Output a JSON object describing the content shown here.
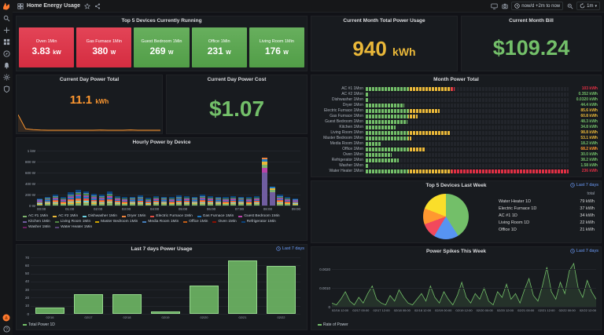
{
  "header": {
    "title": "Home Energy Usage",
    "time_range": "now/d +2m to now",
    "refresh_interval": "1m",
    "icons": [
      "dashboard-icon",
      "star-icon",
      "share-icon",
      "tv-icon",
      "clock-icon",
      "zoom-out-icon",
      "refresh-icon",
      "caret-down-icon"
    ]
  },
  "sidebar": {
    "icons": [
      "grafana-logo",
      "search-icon",
      "plus-icon",
      "dashboards-icon",
      "explore-icon",
      "alerting-icon",
      "settings-icon",
      "shield-icon",
      "avatar",
      "help-icon"
    ]
  },
  "panels": {
    "top5_running": {
      "title": "Top 5 Devices Currently Running",
      "tiles": [
        {
          "label": "Oven 1Min",
          "value": "3.83",
          "unit": "kW",
          "color": "#e02f44"
        },
        {
          "label": "Gas Furnace 1Min",
          "value": "380",
          "unit": "W",
          "color": "#e02f44"
        },
        {
          "label": "Guest Bedroom 1Min",
          "value": "269",
          "unit": "W",
          "color": "#56a64b"
        },
        {
          "label": "Office 1Min",
          "value": "231",
          "unit": "W",
          "color": "#56a64b"
        },
        {
          "label": "Living Room 1Min",
          "value": "176",
          "unit": "W",
          "color": "#56a64b"
        }
      ]
    },
    "month_total": {
      "title": "Current Month Total Power Usage",
      "value": "940",
      "unit": "kWh",
      "color": "#eab839"
    },
    "month_bill": {
      "title": "Current Month Bill",
      "value": "$109.24",
      "color": "#73bf69"
    },
    "day_total": {
      "title": "Current Day Power Total",
      "value": "11.1",
      "unit": "kWh",
      "color": "#ff9830",
      "sparkline": [
        20,
        3.5,
        2.5,
        2,
        1.8,
        1.8,
        1.8,
        1.8,
        1.8,
        1.8,
        1.8,
        2,
        1.8,
        1.8,
        1.8,
        2.2,
        1.8,
        1.8,
        1.8,
        1.8
      ]
    },
    "day_cost": {
      "title": "Current Day Power Cost",
      "value": "$1.07",
      "color": "#73bf69"
    },
    "month_power_total": {
      "title": "Month Power Total",
      "max": 236,
      "rows": [
        {
          "label": "AC #1 1Mon",
          "value": 103,
          "display": "103 kWh",
          "color": "#e02f44"
        },
        {
          "label": "AC #2 1Mon",
          "value": 0.352,
          "display": "0.352 kWh",
          "color": "#73bf69"
        },
        {
          "label": "Dishwasher 1Mon",
          "value": 0.032,
          "display": "0.0320 kWh",
          "color": "#73bf69"
        },
        {
          "label": "Dryer 1Mon",
          "value": 44.4,
          "display": "44.4 kWh",
          "color": "#73bf69"
        },
        {
          "label": "Electric Furnace 1Mon",
          "value": 85.6,
          "display": "85.6 kWh",
          "color": "#eab839"
        },
        {
          "label": "Gas Furnace 1Mon",
          "value": 60.8,
          "display": "60.8 kWh",
          "color": "#eab839"
        },
        {
          "label": "Guest Bedroom 1Mon",
          "value": 48.3,
          "display": "48.3 kWh",
          "color": "#73bf69"
        },
        {
          "label": "Kitchen 1Mon",
          "value": 34.8,
          "display": "34.8 kWh",
          "color": "#73bf69"
        },
        {
          "label": "Living Room 1Mon",
          "value": 98.8,
          "display": "98.8 kWh",
          "color": "#eab839"
        },
        {
          "label": "Master Bedroom 1Mon",
          "value": 53.1,
          "display": "53.1 kWh",
          "color": "#eab839"
        },
        {
          "label": "Media Room 1Mon",
          "value": 18.2,
          "display": "18.2 kWh",
          "color": "#73bf69"
        },
        {
          "label": "Office 1Mon",
          "value": 68.2,
          "display": "68.2 kWh",
          "color": "#ff9830"
        },
        {
          "label": "Oven 1Mon",
          "value": 30.0,
          "display": "30.0 kWh",
          "color": "#73bf69"
        },
        {
          "label": "Refrigerator 1Mon",
          "value": 38.2,
          "display": "38.2 kWh",
          "color": "#73bf69"
        },
        {
          "label": "Washer 1Mon",
          "value": 1.58,
          "display": "1.58 kWh",
          "color": "#73bf69"
        },
        {
          "label": "Water Heater 1Mon",
          "value": 236,
          "display": "236 kWh",
          "color": "#e02f44"
        }
      ]
    },
    "hourly": {
      "title": "Hourly Power by Device",
      "chart_data": {
        "type": "bar",
        "stacked": true,
        "ylim": [
          0,
          1000
        ],
        "ylabels": [
          "1 kW",
          "800 W",
          "600 W",
          "400 W",
          "200 W",
          "0 W"
        ],
        "xlabels": [
          "00:00",
          "01:00",
          "02:00",
          "03:00",
          "04:00",
          "05:00",
          "06:00",
          "07:00",
          "08:00",
          "09:00"
        ],
        "palette": [
          "#7EB26D",
          "#EAB839",
          "#6ED0E0",
          "#EF843C",
          "#E24D42",
          "#1F78C1",
          "#BA43A9",
          "#705DA0",
          "#508642",
          "#CCA300",
          "#447EBC",
          "#C15C17",
          "#890F02",
          "#0A437C",
          "#6D1F62",
          "#584477"
        ],
        "series_names": [
          "AC #1 1Min",
          "AC #2 1Min",
          "Dishwasher 1Min",
          "Dryer 1Min",
          "Electric Furnace 1Min",
          "Gas Furnace 1Min",
          "Guest Bedroom 1Min",
          "Kitchen 1Min",
          "Living Room 1Min",
          "Master Bedroom 1Min",
          "Media Room 1Min",
          "Office 1Min",
          "Oven 1Min",
          "Refrigerator 1Min",
          "Washer 1Min",
          "Water Heater 1Min"
        ],
        "default_mix": [
          [
            0,
            0.16
          ],
          [
            1,
            0.1
          ],
          [
            2,
            0.08
          ],
          [
            3,
            0.1
          ],
          [
            4,
            0.08
          ],
          [
            5,
            0.12
          ],
          [
            6,
            0.08
          ],
          [
            7,
            0.06
          ],
          [
            8,
            0.1
          ],
          [
            10,
            0.06
          ],
          [
            13,
            0.16
          ]
        ],
        "bars": [
          {
            "total": 120
          },
          {
            "total": 150
          },
          {
            "total": 180
          },
          {
            "total": 140
          },
          {
            "total": 220
          },
          {
            "total": 260
          },
          {
            "total": 240
          },
          {
            "total": 200
          },
          {
            "total": 180
          },
          {
            "total": 230
          },
          {
            "total": 160
          },
          {
            "total": 140
          },
          {
            "total": 150
          },
          {
            "total": 170
          },
          {
            "total": 130
          },
          {
            "total": 160
          },
          {
            "total": 150
          },
          {
            "total": 140
          },
          {
            "total": 170
          },
          {
            "total": 160
          },
          {
            "total": 150
          },
          {
            "total": 180
          },
          {
            "total": 160
          },
          {
            "total": 150
          },
          {
            "total": 140
          },
          {
            "total": 160
          },
          {
            "total": 150
          },
          {
            "total": 140
          },
          {
            "total": 160
          },
          {
            "total": 870,
            "segs": [
              [
                7,
                600
              ],
              [
                6,
                90
              ],
              [
                0,
                60
              ],
              [
                1,
                45
              ],
              [
                5,
                45
              ],
              [
                3,
                30
              ]
            ]
          },
          {
            "total": 350,
            "segs": [
              [
                7,
                250
              ],
              [
                0,
                40
              ],
              [
                1,
                30
              ],
              [
                5,
                30
              ]
            ]
          },
          {
            "total": 180
          },
          {
            "total": 140
          },
          {
            "total": 120
          }
        ]
      }
    },
    "top5_week": {
      "title": "Top 5 Devices Last Week",
      "link_label": "Last 7 days",
      "legend_header": "total",
      "slice_order": [
        0,
        2,
        4,
        3,
        1
      ],
      "items": [
        {
          "label": "Water Heater 1D",
          "value": "79 kWh",
          "v": 79,
          "color": "#73BF69"
        },
        {
          "label": "Electric Furnace 1D",
          "value": "37 kWh",
          "v": 37,
          "color": "#FADE2A"
        },
        {
          "label": "AC #1 1D",
          "value": "34 kWh",
          "v": 34,
          "color": "#5794F2"
        },
        {
          "label": "Living Room 1D",
          "value": "22 kWh",
          "v": 22,
          "color": "#FF9830"
        },
        {
          "label": "Office 1D",
          "value": "21 kWh",
          "v": 21,
          "color": "#F2495C"
        }
      ]
    },
    "last7": {
      "title": "Last 7 days Power Usage",
      "link_label": "Last 7 days",
      "legend": "Total Power 1D",
      "legend_color": "#73BF69",
      "chart_data": {
        "type": "bar",
        "categories": [
          "02/16",
          "02/17",
          "02/18",
          "02/19",
          "02/20",
          "02/21",
          "02/22"
        ],
        "values": [
          8,
          24,
          24,
          3,
          35,
          66,
          59
        ],
        "ylim": [
          0,
          70
        ],
        "ylabels": [
          "70",
          "60",
          "50",
          "40",
          "30",
          "20",
          "10",
          "0"
        ]
      }
    },
    "spikes": {
      "title": "Power Spikes This Week",
      "link_label": "Last 7 days",
      "legend": "Rate of Power",
      "legend_color": "#73BF69",
      "chart_data": {
        "type": "area",
        "ymax": 0.0025,
        "unit_scale": 0.0001,
        "values": [
          2,
          1,
          4,
          8,
          3,
          1,
          5,
          2,
          7,
          11,
          4,
          2,
          1,
          6,
          3,
          9,
          5,
          2,
          1,
          4,
          7,
          3,
          11,
          5,
          2,
          8,
          4,
          1,
          6,
          13,
          5,
          2,
          7,
          4,
          10,
          3,
          1,
          8,
          5,
          12,
          4,
          7,
          2,
          9,
          15,
          6,
          3,
          11,
          21,
          8,
          4,
          13,
          7,
          19,
          23,
          10,
          5,
          14,
          8,
          4
        ],
        "ylabels": [
          {
            "text": "0.0020",
            "v": 20
          },
          {
            "text": "0.0010",
            "v": 10
          },
          {
            "text": "0",
            "v": 0
          }
        ],
        "xlabels": [
          "02/16 12:00",
          "02/17 00:00",
          "02/17 12:00",
          "02/18 00:00",
          "02/18 12:00",
          "02/19 00:00",
          "02/19 12:00",
          "02/20 00:00",
          "02/20 12:00",
          "02/21 00:00",
          "02/21 12:00",
          "02/22 00:00",
          "02/22 12:00"
        ]
      }
    }
  }
}
